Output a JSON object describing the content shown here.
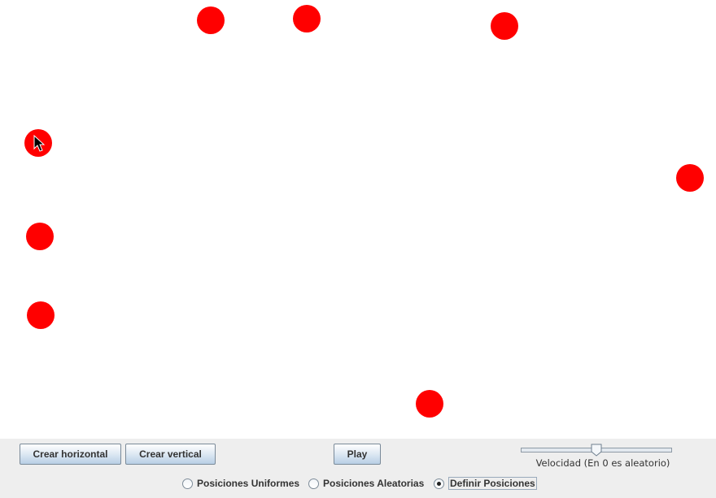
{
  "canvas": {
    "ball_color": "#ff0000",
    "balls": [
      {
        "id": "ball-1"
      },
      {
        "id": "ball-2"
      },
      {
        "id": "ball-3"
      },
      {
        "id": "ball-4"
      },
      {
        "id": "ball-5"
      },
      {
        "id": "ball-6"
      },
      {
        "id": "ball-7"
      },
      {
        "id": "ball-8"
      },
      {
        "id": "ball-9"
      }
    ]
  },
  "controls": {
    "crear_horizontal": "Crear horizontal",
    "crear_vertical": "Crear vertical",
    "play": "Play",
    "slider": {
      "label": "Velocidad (En 0 es aleatorio)",
      "value_fraction": 0.5
    },
    "radios": [
      {
        "label": "Posiciones Uniformes",
        "selected": false
      },
      {
        "label": "Posiciones Aleatorias",
        "selected": false
      },
      {
        "label": "Definir Posiciones",
        "selected": true
      }
    ]
  }
}
